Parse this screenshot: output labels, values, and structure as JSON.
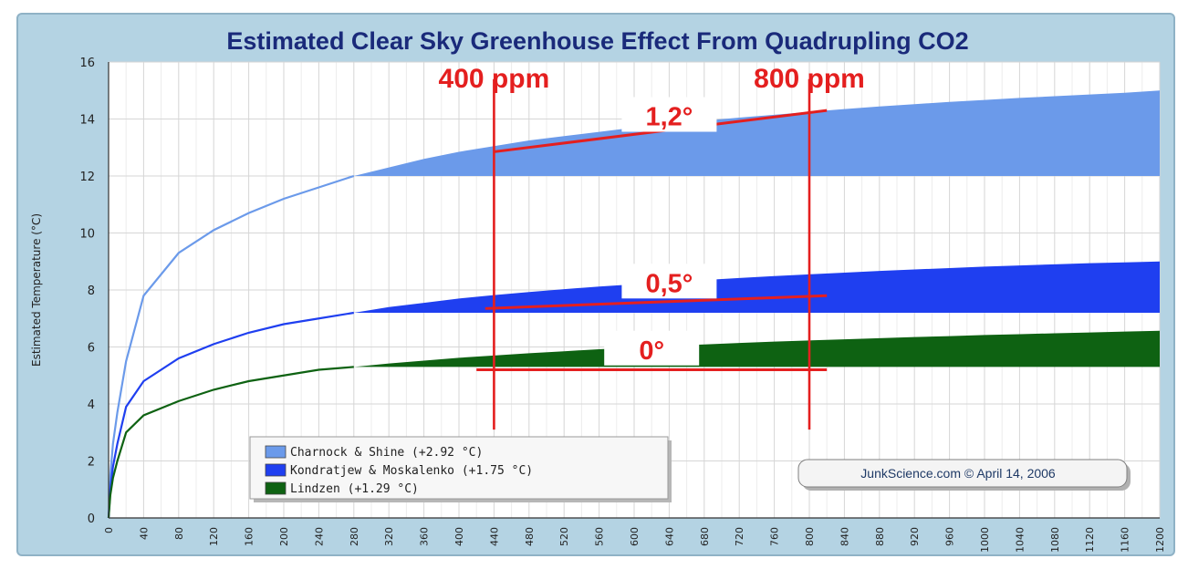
{
  "chart_data": {
    "type": "area",
    "title": "Estimated Clear Sky Greenhouse Effect From Quadrupling CO2",
    "xlabel": "",
    "ylabel": "Estimated Temperature (°C)",
    "xlim": [
      0,
      1200
    ],
    "ylim": [
      0,
      16
    ],
    "yticks": [
      0,
      2,
      4,
      6,
      8,
      10,
      12,
      14,
      16
    ],
    "xticks": [
      0,
      40,
      80,
      120,
      160,
      200,
      240,
      280,
      320,
      360,
      400,
      440,
      480,
      520,
      560,
      600,
      640,
      680,
      720,
      760,
      800,
      840,
      880,
      920,
      960,
      1000,
      1040,
      1080,
      1120,
      1160,
      1200
    ],
    "grid": true,
    "legend_position": "bottom-left",
    "series": [
      {
        "name": "Charnock & Shine (+2.92 °C)",
        "color": "#6b9aea",
        "points": [
          [
            0,
            0
          ],
          [
            2,
            1.5
          ],
          [
            5,
            2.6
          ],
          [
            10,
            3.7
          ],
          [
            20,
            5.5
          ],
          [
            40,
            7.8
          ],
          [
            80,
            9.3
          ],
          [
            120,
            10.1
          ],
          [
            160,
            10.7
          ],
          [
            200,
            11.2
          ],
          [
            240,
            11.6
          ],
          [
            280,
            12.0
          ],
          [
            320,
            12.3
          ],
          [
            360,
            12.6
          ],
          [
            400,
            12.85
          ],
          [
            440,
            13.05
          ],
          [
            480,
            13.25
          ],
          [
            520,
            13.4
          ],
          [
            560,
            13.55
          ],
          [
            600,
            13.7
          ],
          [
            640,
            13.82
          ],
          [
            680,
            13.94
          ],
          [
            720,
            14.05
          ],
          [
            760,
            14.15
          ],
          [
            800,
            14.25
          ],
          [
            840,
            14.35
          ],
          [
            880,
            14.44
          ],
          [
            920,
            14.52
          ],
          [
            960,
            14.6
          ],
          [
            1000,
            14.67
          ],
          [
            1040,
            14.74
          ],
          [
            1080,
            14.8
          ],
          [
            1120,
            14.86
          ],
          [
            1160,
            14.92
          ],
          [
            1200,
            15.0
          ]
        ],
        "fill_from": 280,
        "fill_base": 12.0
      },
      {
        "name": "Kondratjew & Moskalenko (+1.75 °C)",
        "color": "#1f3ff0",
        "points": [
          [
            0,
            0
          ],
          [
            2,
            1.0
          ],
          [
            5,
            1.8
          ],
          [
            10,
            2.6
          ],
          [
            20,
            3.9
          ],
          [
            40,
            4.8
          ],
          [
            80,
            5.6
          ],
          [
            120,
            6.1
          ],
          [
            160,
            6.5
          ],
          [
            200,
            6.8
          ],
          [
            240,
            7.0
          ],
          [
            280,
            7.2
          ],
          [
            320,
            7.4
          ],
          [
            360,
            7.55
          ],
          [
            400,
            7.7
          ],
          [
            440,
            7.82
          ],
          [
            480,
            7.93
          ],
          [
            520,
            8.03
          ],
          [
            560,
            8.12
          ],
          [
            600,
            8.2
          ],
          [
            640,
            8.28
          ],
          [
            680,
            8.35
          ],
          [
            720,
            8.42
          ],
          [
            760,
            8.49
          ],
          [
            800,
            8.55
          ],
          [
            840,
            8.61
          ],
          [
            880,
            8.67
          ],
          [
            920,
            8.72
          ],
          [
            960,
            8.77
          ],
          [
            1000,
            8.82
          ],
          [
            1040,
            8.86
          ],
          [
            1080,
            8.9
          ],
          [
            1120,
            8.94
          ],
          [
            1160,
            8.97
          ],
          [
            1200,
            9.0
          ]
        ],
        "fill_from": 280,
        "fill_base": 7.2
      },
      {
        "name": "Lindzen (+1.29 °C)",
        "color": "#0e6212",
        "points": [
          [
            0,
            0
          ],
          [
            2,
            0.8
          ],
          [
            5,
            1.4
          ],
          [
            10,
            2.0
          ],
          [
            20,
            3.0
          ],
          [
            40,
            3.6
          ],
          [
            80,
            4.1
          ],
          [
            120,
            4.5
          ],
          [
            160,
            4.8
          ],
          [
            200,
            5.0
          ],
          [
            240,
            5.2
          ],
          [
            280,
            5.3
          ],
          [
            320,
            5.42
          ],
          [
            360,
            5.52
          ],
          [
            400,
            5.62
          ],
          [
            440,
            5.7
          ],
          [
            480,
            5.78
          ],
          [
            520,
            5.85
          ],
          [
            560,
            5.92
          ],
          [
            600,
            5.98
          ],
          [
            640,
            6.04
          ],
          [
            680,
            6.09
          ],
          [
            720,
            6.14
          ],
          [
            760,
            6.19
          ],
          [
            800,
            6.23
          ],
          [
            840,
            6.27
          ],
          [
            880,
            6.31
          ],
          [
            920,
            6.35
          ],
          [
            960,
            6.38
          ],
          [
            1000,
            6.42
          ],
          [
            1040,
            6.45
          ],
          [
            1080,
            6.48
          ],
          [
            1120,
            6.51
          ],
          [
            1160,
            6.54
          ],
          [
            1200,
            6.57
          ]
        ],
        "fill_from": 280,
        "fill_base": 5.3
      }
    ],
    "annotations": {
      "color": "#e41f1f",
      "ppm_labels": [
        {
          "text": "400 ppm",
          "x": 440
        },
        {
          "text": "800 ppm",
          "x": 800
        }
      ],
      "vertical_lines_x": [
        440,
        800
      ],
      "vertical_line_y_range": [
        3.1,
        15.4
      ],
      "trend_lines": [
        {
          "x1": 440,
          "y1": 12.85,
          "x2": 820,
          "y2": 14.3
        },
        {
          "x1": 430,
          "y1": 7.35,
          "x2": 820,
          "y2": 7.8
        },
        {
          "x1": 420,
          "y1": 5.2,
          "x2": 820,
          "y2": 5.2
        }
      ],
      "delta_labels": [
        {
          "text": "1,2°",
          "x": 640,
          "y": 14.0
        },
        {
          "text": "0,5°",
          "x": 640,
          "y": 8.15
        },
        {
          "text": "0°",
          "x": 620,
          "y": 5.8
        }
      ]
    },
    "credit": "JunkScience.com © April 14, 2006"
  }
}
